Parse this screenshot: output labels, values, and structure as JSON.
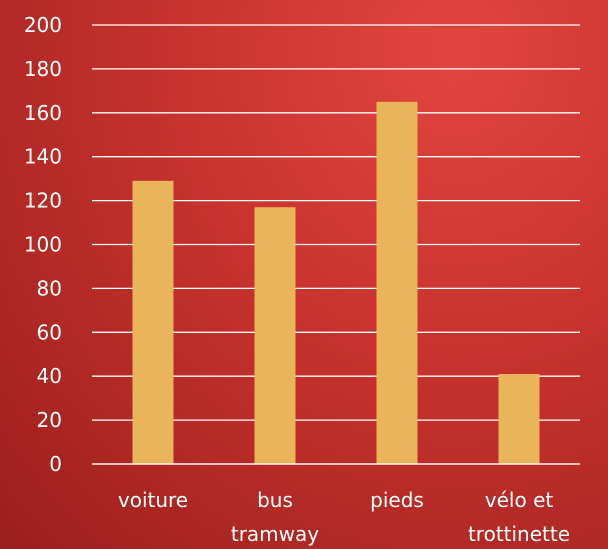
{
  "chart_data": {
    "type": "bar",
    "categories": [
      [
        "voiture"
      ],
      [
        "bus",
        "tramway"
      ],
      [
        "pieds"
      ],
      [
        "vélo et",
        "trottinette"
      ]
    ],
    "values": [
      129,
      117,
      165,
      41
    ],
    "ylim": [
      0,
      200
    ],
    "yticks": [
      "0",
      "20",
      "40",
      "60",
      "80",
      "100",
      "120",
      "140",
      "160",
      "180",
      "200"
    ],
    "grid": true,
    "legend": "none",
    "colors": {
      "bar": "#e9b45a",
      "grid": "#ffffff",
      "text": "#ffffff"
    }
  }
}
